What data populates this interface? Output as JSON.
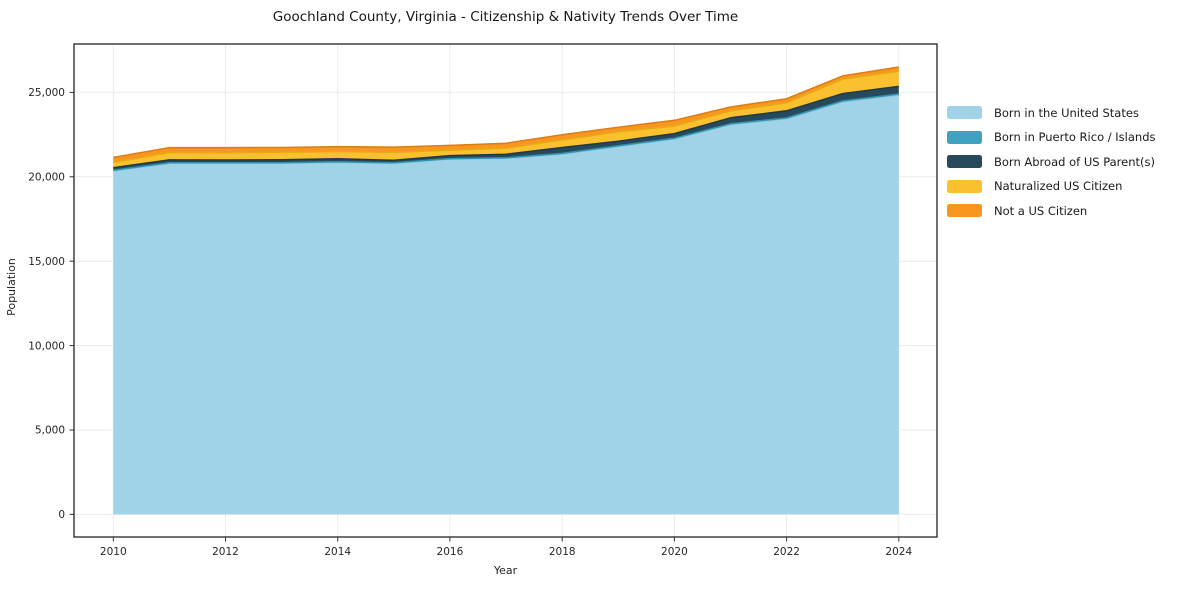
{
  "figure": {
    "background": "#ffffff",
    "spine_color": "#222222",
    "grid_color": "#ebebeb",
    "tick_color": "#333333",
    "tick_label_color": "#262626"
  },
  "chart_data": {
    "type": "area",
    "stacked": true,
    "title": "Goochland County, Virginia - Citizenship & Nativity Trends Over Time",
    "xlabel": "Year",
    "ylabel": "Population",
    "x": [
      2010,
      2011,
      2012,
      2013,
      2014,
      2015,
      2016,
      2017,
      2018,
      2019,
      2020,
      2021,
      2022,
      2023,
      2024
    ],
    "series": [
      {
        "name": "Born in the United States",
        "color": "#a0d2e8",
        "edge": "#84c0dc",
        "values": [
          20350,
          20800,
          20800,
          20810,
          20860,
          20800,
          21050,
          21100,
          21350,
          21800,
          22250,
          23100,
          23450,
          24450,
          24850
        ]
      },
      {
        "name": "Born in Puerto Rico / Islands",
        "color": "#3fa3bf",
        "edge": "#2f93ad",
        "values": [
          40,
          30,
          30,
          30,
          30,
          30,
          30,
          30,
          40,
          40,
          40,
          40,
          40,
          50,
          60
        ]
      },
      {
        "name": "Born Abroad of US Parent(s)",
        "color": "#27495c",
        "edge": "#1d3a4a",
        "values": [
          150,
          175,
          170,
          170,
          180,
          150,
          180,
          210,
          350,
          270,
          270,
          360,
          420,
          430,
          450
        ]
      },
      {
        "name": "Naturalized US Citizen",
        "color": "#fbc02d",
        "edge": "#e5ab14",
        "values": [
          310,
          430,
          430,
          440,
          430,
          470,
          320,
          350,
          450,
          560,
          450,
          400,
          480,
          850,
          900
        ]
      },
      {
        "name": "Not a US Citizen",
        "color": "#f8961f",
        "edge": "#dd7e12",
        "values": [
          300,
          295,
          300,
          290,
          290,
          310,
          280,
          300,
          300,
          270,
          340,
          240,
          240,
          200,
          250
        ]
      }
    ],
    "xticks": [
      2010,
      2012,
      2014,
      2016,
      2018,
      2020,
      2022,
      2024
    ],
    "xtick_labels": [
      "2010",
      "2012",
      "2014",
      "2016",
      "2018",
      "2020",
      "2022",
      "2024"
    ],
    "yticks": [
      0,
      5000,
      10000,
      15000,
      20000,
      25000
    ],
    "ytick_labels": [
      "0",
      "5,000",
      "10,000",
      "15,000",
      "20,000",
      "25,000"
    ],
    "xlim": [
      2009.3,
      2024.68
    ],
    "ylim": [
      -1340,
      27870
    ],
    "grid": true,
    "legend_position": "right"
  }
}
